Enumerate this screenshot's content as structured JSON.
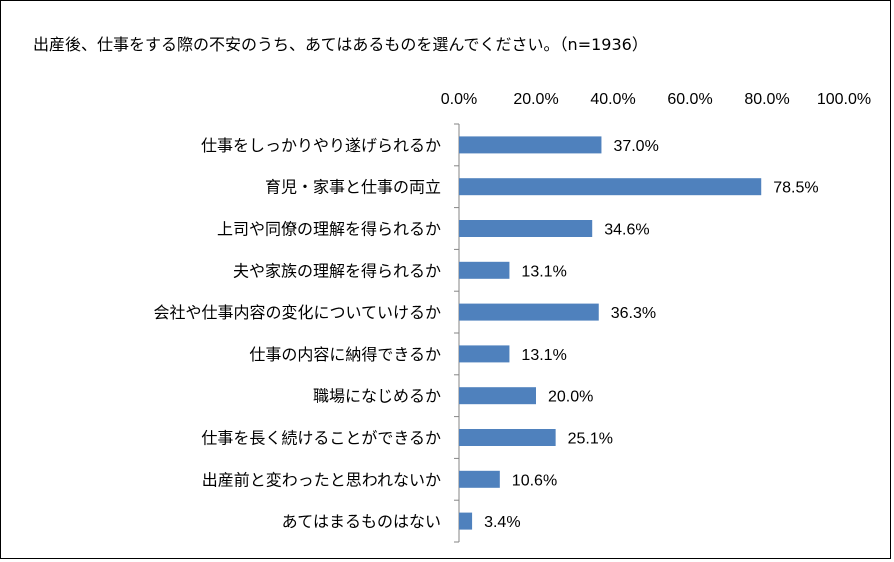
{
  "chart_data": {
    "type": "bar",
    "orientation": "horizontal",
    "title": "出産後、仕事をする際の不安のうち、あてはあるものを選んでください。（n=1936）",
    "categories": [
      "仕事をしっかりやり遂げられるか",
      "育児・家事と仕事の両立",
      "上司や同僚の理解を得られるか",
      "夫や家族の理解を得られるか",
      "会社や仕事内容の変化についていけるか",
      "仕事の内容に納得できるか",
      "職場になじめるか",
      "仕事を長く続けることができるか",
      "出産前と変わったと思われないか",
      "あてはまるものはない"
    ],
    "values": [
      37.0,
      78.5,
      34.6,
      13.1,
      36.3,
      13.1,
      20.0,
      25.1,
      10.6,
      3.4
    ],
    "value_labels": [
      "37.0%",
      "78.5%",
      "34.6%",
      "13.1%",
      "36.3%",
      "13.1%",
      "20.0%",
      "25.1%",
      "10.6%",
      "3.4%"
    ],
    "xlim": [
      0,
      100
    ],
    "xticks": [
      "0.0%",
      "20.0%",
      "40.0%",
      "60.0%",
      "80.0%",
      "100.0%"
    ],
    "axis_position": "top",
    "grid": false,
    "bar_color": "#4F81BD"
  }
}
